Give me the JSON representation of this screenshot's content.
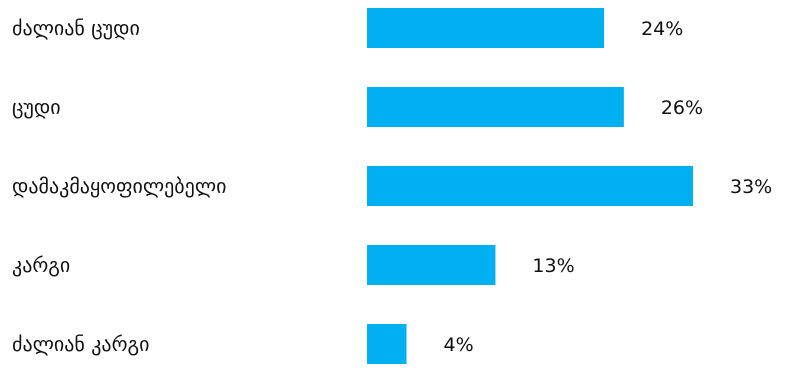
{
  "chart_data": {
    "type": "bar",
    "orientation": "horizontal",
    "title": "",
    "xlabel": "",
    "ylabel": "",
    "categories": [
      "ძალიან ცუდი",
      "ცუდი",
      "დამაკმაყოფილებელი",
      "კარგი",
      "ძალიან კარგი"
    ],
    "values": [
      24,
      26,
      33,
      13,
      4
    ],
    "value_labels": [
      "24%",
      "26%",
      "33%",
      "13%",
      "4%"
    ],
    "xlim": [
      0,
      33
    ],
    "grid": false,
    "legend": "none",
    "bar_color": "#00b0f0",
    "text_color": "#111111"
  }
}
